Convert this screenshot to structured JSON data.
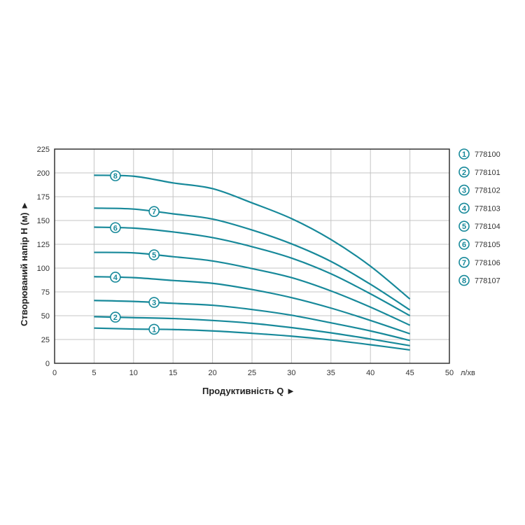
{
  "chart_data": {
    "type": "line",
    "title": "",
    "xlabel": "Продуктивність  Q ►",
    "ylabel": "Створюваний напір H (м) ►",
    "x_unit": "л/хв",
    "xlim": [
      0,
      50
    ],
    "ylim": [
      0,
      225
    ],
    "x_ticks": [
      "0",
      "5",
      "10",
      "15",
      "20",
      "25",
      "30",
      "35",
      "40",
      "45",
      "50"
    ],
    "y_ticks": [
      "0",
      "25",
      "50",
      "75",
      "100",
      "125",
      "150",
      "175",
      "200",
      "225"
    ],
    "grid": true,
    "legend_placement": "right",
    "line_color": "#17899a",
    "x": [
      5,
      10,
      15,
      20,
      25,
      30,
      35,
      40,
      45
    ],
    "series": [
      {
        "name": "778100",
        "marker": "1",
        "values": [
          37,
          36,
          35.5,
          34,
          31.5,
          28.5,
          24.5,
          19.5,
          14
        ]
      },
      {
        "name": "778101",
        "marker": "2",
        "values": [
          49,
          48,
          47,
          45,
          42,
          37.5,
          32,
          25.5,
          18.5
        ]
      },
      {
        "name": "778102",
        "marker": "3",
        "values": [
          66,
          65,
          63,
          61,
          56.5,
          50.5,
          42.5,
          34,
          24
        ]
      },
      {
        "name": "778103",
        "marker": "4",
        "values": [
          91,
          90,
          87,
          84,
          77.5,
          69,
          58,
          45,
          31
        ]
      },
      {
        "name": "778104",
        "marker": "5",
        "values": [
          116.5,
          116,
          112,
          107.5,
          99.5,
          90,
          76,
          59,
          40
        ]
      },
      {
        "name": "778105",
        "marker": "6",
        "values": [
          143,
          142,
          138,
          132,
          122.5,
          110.5,
          94,
          73,
          50
        ]
      },
      {
        "name": "778106",
        "marker": "7",
        "values": [
          163,
          162,
          157,
          151.5,
          140,
          125.5,
          107,
          83,
          56
        ]
      },
      {
        "name": "778107",
        "marker": "8",
        "values": [
          197.5,
          196.5,
          189.5,
          183.5,
          168.5,
          152,
          130,
          102,
          67.5
        ]
      }
    ]
  }
}
